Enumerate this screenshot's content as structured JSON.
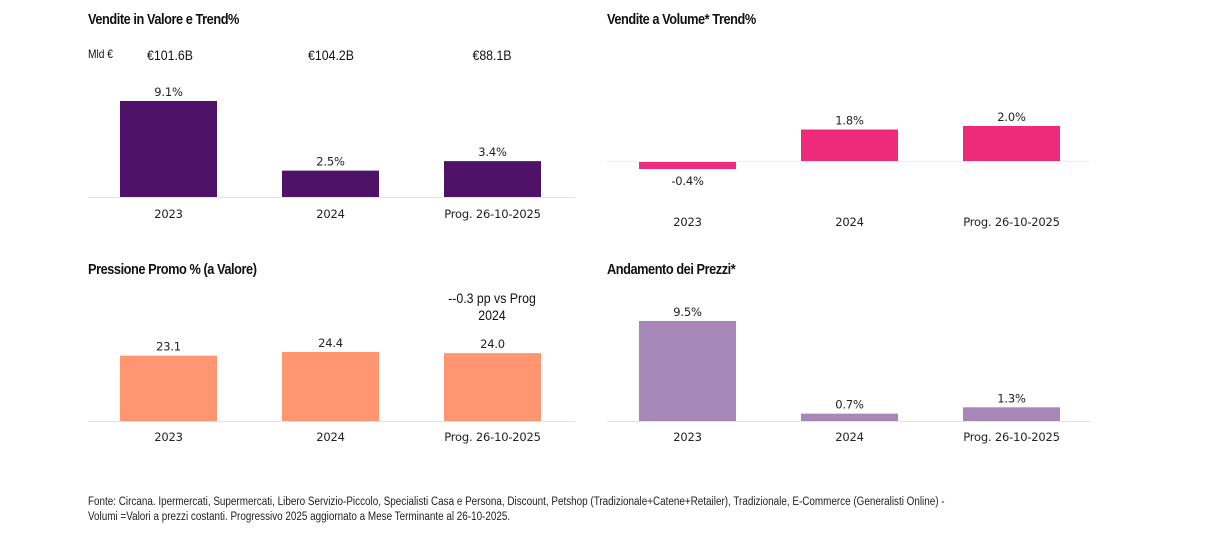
{
  "chart_data": [
    {
      "id": "valore",
      "type": "bar",
      "title": "Vendite in Valore e Trend%",
      "unit_label": "Mld €",
      "totals": [
        "€101.6B",
        "€104.2B",
        "€88.1B"
      ],
      "categories": [
        "2023",
        "2024",
        "Prog. 26-10-2025"
      ],
      "values": [
        9.1,
        2.5,
        3.4
      ],
      "data_labels": [
        "9.1%",
        "2.5%",
        "3.4%"
      ],
      "color": "#4E1268",
      "xlabel": "",
      "ylabel": "",
      "ylim": [
        0,
        9.1
      ],
      "grid": false
    },
    {
      "id": "volume",
      "type": "bar",
      "title": "Vendite a Volume* Trend%",
      "categories": [
        "2023",
        "2024",
        "Prog. 26-10-2025"
      ],
      "values": [
        -0.4,
        1.8,
        2.0
      ],
      "data_labels": [
        "-0.4%",
        "1.8%",
        "2.0%"
      ],
      "color": "#EE2A7B",
      "xlabel": "",
      "ylabel": "",
      "ylim": [
        -0.4,
        2.0
      ],
      "grid": false
    },
    {
      "id": "promo",
      "type": "bar",
      "title": "Pressione Promo % (a Valore)",
      "annotation": "--0.3 pp vs Prog 2024",
      "annotation_lines": [
        "--0.3 pp vs Prog",
        "2024"
      ],
      "categories": [
        "2023",
        "2024",
        "Prog. 26-10-2025"
      ],
      "values": [
        23.1,
        24.4,
        24.0
      ],
      "data_labels": [
        "23.1",
        "24.4",
        "24.0"
      ],
      "color": "#FF9671",
      "xlabel": "",
      "ylabel": "",
      "ylim": [
        0,
        24.4
      ],
      "grid": false
    },
    {
      "id": "prezzi",
      "type": "bar",
      "title": "Andamento dei Prezzi*",
      "categories": [
        "2023",
        "2024",
        "Prog. 26-10-2025"
      ],
      "values": [
        9.5,
        0.7,
        1.3
      ],
      "data_labels": [
        "9.5%",
        "0.7%",
        "1.3%"
      ],
      "color": "#A787B8",
      "xlabel": "",
      "ylabel": "",
      "ylim": [
        0,
        9.5
      ],
      "grid": false
    }
  ],
  "footer": {
    "line1": "Fonte: Circana. Ipermercati, Supermercati, Libero Servizio-Piccolo, Specialisti Casa e Persona, Discount, Petshop (Tradizionale+Catene+Retailer), Tradizionale, E-Commerce (Generalisti Online) -",
    "line2": "Volumi =Valori a prezzi costanti. Progressivo 2025 aggiornato a Mese Terminante al 26-10-2025."
  }
}
